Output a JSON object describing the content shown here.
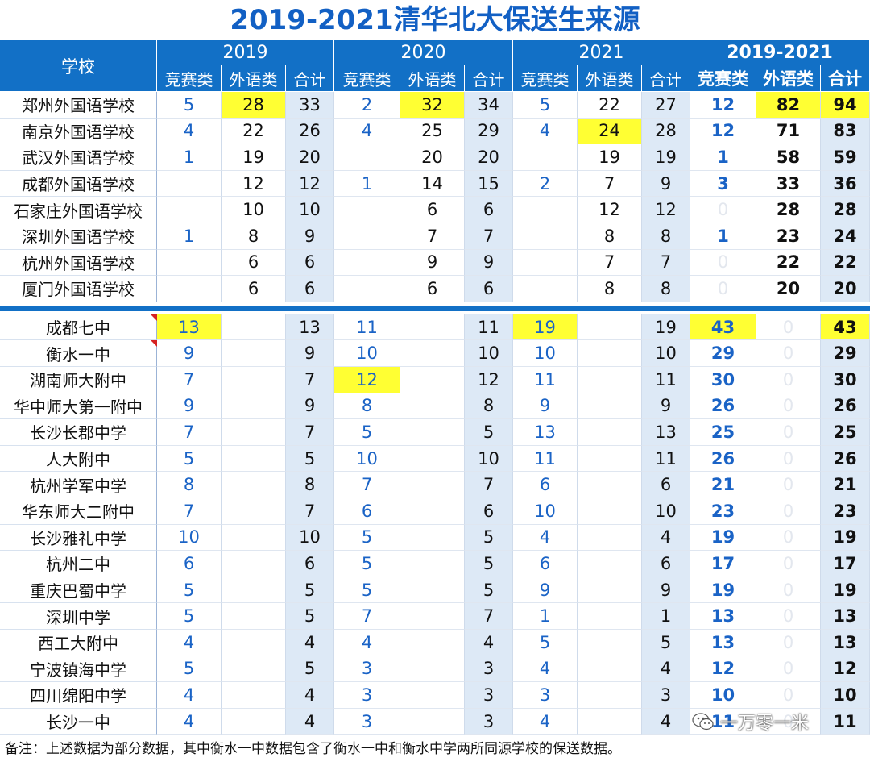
{
  "title": "2019-2021清华北大保送生来源",
  "header": {
    "school_label": "学校",
    "years": [
      "2019",
      "2020",
      "2021",
      "2019-2021"
    ],
    "sub": [
      "竞赛类",
      "外语类",
      "合计"
    ]
  },
  "rows_group1": [
    {
      "school": "郑州外国语学校",
      "v": [
        "5",
        "28",
        "33",
        "2",
        "32",
        "34",
        "5",
        "22",
        "27",
        "12",
        "82",
        "94"
      ]
    },
    {
      "school": "南京外国语学校",
      "v": [
        "4",
        "22",
        "26",
        "4",
        "25",
        "29",
        "4",
        "24",
        "28",
        "12",
        "71",
        "83"
      ]
    },
    {
      "school": "武汉外国语学校",
      "v": [
        "1",
        "19",
        "20",
        "",
        "20",
        "20",
        "",
        "19",
        "19",
        "1",
        "58",
        "59"
      ]
    },
    {
      "school": "成都外国语学校",
      "v": [
        "",
        "12",
        "12",
        "1",
        "14",
        "15",
        "2",
        "7",
        "9",
        "3",
        "33",
        "36"
      ]
    },
    {
      "school": "石家庄外国语学校",
      "v": [
        "",
        "10",
        "10",
        "",
        "6",
        "6",
        "",
        "12",
        "12",
        "0",
        "28",
        "28"
      ]
    },
    {
      "school": "深圳外国语学校",
      "v": [
        "1",
        "8",
        "9",
        "",
        "7",
        "7",
        "",
        "8",
        "8",
        "1",
        "23",
        "24"
      ]
    },
    {
      "school": "杭州外国语学校",
      "v": [
        "",
        "6",
        "6",
        "",
        "9",
        "9",
        "",
        "7",
        "7",
        "0",
        "22",
        "22"
      ]
    },
    {
      "school": "厦门外国语学校",
      "v": [
        "",
        "6",
        "6",
        "",
        "6",
        "6",
        "",
        "8",
        "8",
        "0",
        "20",
        "20"
      ]
    }
  ],
  "rows_group2": [
    {
      "school": "成都七中",
      "v": [
        "13",
        "",
        "13",
        "11",
        "",
        "11",
        "19",
        "",
        "19",
        "43",
        "0",
        "43"
      ]
    },
    {
      "school": "衡水一中",
      "v": [
        "9",
        "",
        "9",
        "10",
        "",
        "10",
        "10",
        "",
        "10",
        "29",
        "0",
        "29"
      ]
    },
    {
      "school": "湖南师大附中",
      "v": [
        "7",
        "",
        "7",
        "12",
        "",
        "12",
        "11",
        "",
        "11",
        "30",
        "0",
        "30"
      ]
    },
    {
      "school": "华中师大第一附中",
      "v": [
        "9",
        "",
        "9",
        "8",
        "",
        "8",
        "9",
        "",
        "9",
        "26",
        "0",
        "26"
      ]
    },
    {
      "school": "长沙长郡中学",
      "v": [
        "7",
        "",
        "7",
        "5",
        "",
        "5",
        "13",
        "",
        "13",
        "25",
        "0",
        "25"
      ]
    },
    {
      "school": "人大附中",
      "v": [
        "5",
        "",
        "5",
        "10",
        "",
        "10",
        "11",
        "",
        "11",
        "26",
        "0",
        "26"
      ]
    },
    {
      "school": "杭州学军中学",
      "v": [
        "8",
        "",
        "8",
        "7",
        "",
        "7",
        "6",
        "",
        "6",
        "21",
        "0",
        "21"
      ]
    },
    {
      "school": "华东师大二附中",
      "v": [
        "7",
        "",
        "7",
        "6",
        "",
        "6",
        "10",
        "",
        "10",
        "23",
        "0",
        "23"
      ]
    },
    {
      "school": "长沙雅礼中学",
      "v": [
        "10",
        "",
        "10",
        "5",
        "",
        "5",
        "4",
        "",
        "4",
        "19",
        "0",
        "19"
      ]
    },
    {
      "school": "杭州二中",
      "v": [
        "6",
        "",
        "6",
        "5",
        "",
        "5",
        "6",
        "",
        "6",
        "17",
        "0",
        "17"
      ]
    },
    {
      "school": "重庆巴蜀中学",
      "v": [
        "5",
        "",
        "5",
        "5",
        "",
        "5",
        "9",
        "",
        "9",
        "19",
        "0",
        "19"
      ]
    },
    {
      "school": "深圳中学",
      "v": [
        "5",
        "",
        "5",
        "7",
        "",
        "7",
        "1",
        "",
        "1",
        "13",
        "0",
        "13"
      ]
    },
    {
      "school": "西工大附中",
      "v": [
        "4",
        "",
        "4",
        "4",
        "",
        "4",
        "5",
        "",
        "5",
        "13",
        "0",
        "13"
      ]
    },
    {
      "school": "宁波镇海中学",
      "v": [
        "5",
        "",
        "5",
        "3",
        "",
        "3",
        "4",
        "",
        "4",
        "12",
        "0",
        "12"
      ]
    },
    {
      "school": "四川绵阳中学",
      "v": [
        "4",
        "",
        "4",
        "3",
        "",
        "3",
        "3",
        "",
        "3",
        "10",
        "0",
        "10"
      ]
    },
    {
      "school": "长沙一中",
      "v": [
        "4",
        "",
        "4",
        "3",
        "",
        "3",
        "4",
        "",
        "4",
        "11",
        "0",
        "11"
      ]
    }
  ],
  "highlights_group1": [
    [
      0,
      1
    ],
    [
      0,
      4
    ],
    [
      0,
      10
    ],
    [
      0,
      11
    ],
    [
      1,
      7
    ]
  ],
  "highlights_group2": [
    [
      0,
      0
    ],
    [
      0,
      6
    ],
    [
      0,
      9
    ],
    [
      0,
      11
    ],
    [
      2,
      3
    ]
  ],
  "flagged_group2": [
    0,
    1
  ],
  "note": "备注：上述数据为部分数据，其中衡水一中数据包含了衡水一中和衡水中学两所同源学校的保送数据。",
  "watermark": "一万零一米",
  "colors": {
    "header_bg": "#1270c6",
    "title": "#1260c4",
    "competition_text": "#1a63c6",
    "highlight": "#ffff33",
    "total_bg": "#dde9f6"
  }
}
